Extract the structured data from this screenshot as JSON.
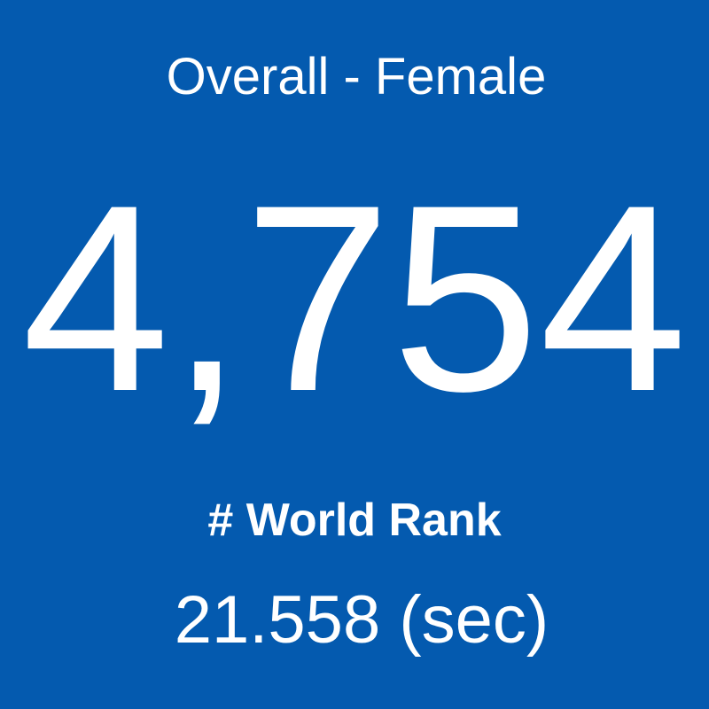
{
  "tile": {
    "title": "Overall - Female",
    "rank": "4,754",
    "rank_label": "# World Rank",
    "time": "21.558 (sec)"
  }
}
